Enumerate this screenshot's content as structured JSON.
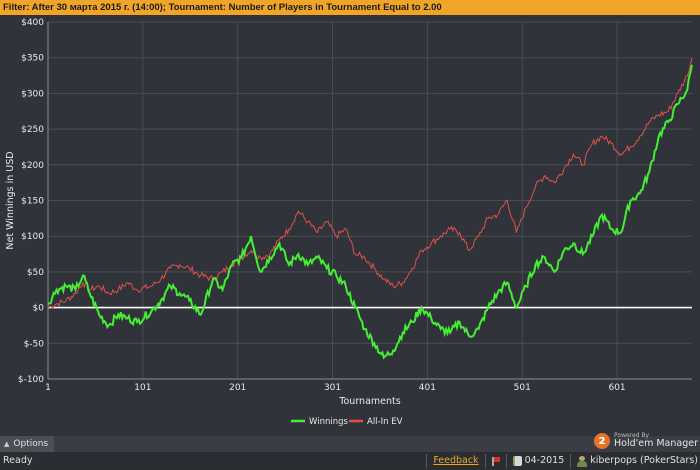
{
  "filter_text": "Filter: After 30 марта 2015 г. (14:00); Tournament: Number of Players in Tournament Equal to 2.00",
  "options_bar": {
    "label": "Options"
  },
  "logo": {
    "small_text": "Powered By",
    "main_text": "Hold'em Manager",
    "badge": "2"
  },
  "status": {
    "ready": "Ready",
    "feedback": "Feedback",
    "database": "04-2015",
    "player": "kiberpops (PokerStars)"
  },
  "colors": {
    "winnings": "#44ee33",
    "all_in_ev": "#e0504a",
    "zero_line": "#ffffff",
    "grid": "#4a4e54",
    "background": "#30343a"
  },
  "chart_data": {
    "type": "line",
    "xlabel": "Tournaments",
    "ylabel": "Net Winnings in USD",
    "xlim": [
      1,
      680
    ],
    "ylim": [
      -100,
      400
    ],
    "x_ticks": [
      1,
      101,
      201,
      301,
      401,
      501,
      601
    ],
    "y_ticks": [
      {
        "value": 400,
        "label": "$400"
      },
      {
        "value": 350,
        "label": "$350"
      },
      {
        "value": 300,
        "label": "$300"
      },
      {
        "value": 250,
        "label": "$250"
      },
      {
        "value": 200,
        "label": "$200"
      },
      {
        "value": 150,
        "label": "$150"
      },
      {
        "value": 100,
        "label": "$100"
      },
      {
        "value": 50,
        "label": "$50"
      },
      {
        "value": 0,
        "label": "$0"
      },
      {
        "value": -50,
        "label": "$-50"
      },
      {
        "value": -100,
        "label": "$-100"
      }
    ],
    "grid": true,
    "legend_position": "bottom-center",
    "series": [
      {
        "name": "Winnings",
        "x": [
          1,
          10,
          20,
          30,
          38,
          45,
          55,
          65,
          75,
          85,
          95,
          110,
          120,
          130,
          140,
          150,
          162,
          175,
          185,
          195,
          205,
          215,
          225,
          235,
          245,
          255,
          265,
          275,
          285,
          295,
          305,
          315,
          325,
          335,
          345,
          355,
          365,
          375,
          385,
          395,
          405,
          415,
          425,
          435,
          445,
          455,
          465,
          475,
          485,
          495,
          505,
          515,
          525,
          535,
          545,
          555,
          565,
          575,
          585,
          595,
          605,
          615,
          625,
          635,
          645,
          655,
          665,
          675,
          680
        ],
        "y": [
          5,
          25,
          30,
          25,
          45,
          20,
          -10,
          -25,
          -10,
          -15,
          -20,
          -5,
          10,
          30,
          20,
          10,
          -10,
          40,
          25,
          60,
          70,
          100,
          50,
          70,
          90,
          60,
          75,
          60,
          70,
          55,
          45,
          30,
          0,
          -30,
          -50,
          -70,
          -60,
          -35,
          -20,
          0,
          -15,
          -30,
          -35,
          -20,
          -40,
          -30,
          0,
          20,
          35,
          0,
          30,
          60,
          70,
          50,
          80,
          90,
          75,
          100,
          130,
          110,
          105,
          150,
          160,
          190,
          240,
          260,
          285,
          305,
          340
        ]
      },
      {
        "name": "All-In EV",
        "x": [
          1,
          10,
          20,
          30,
          38,
          45,
          55,
          65,
          75,
          85,
          95,
          110,
          120,
          130,
          140,
          150,
          162,
          175,
          185,
          195,
          205,
          215,
          225,
          235,
          245,
          255,
          265,
          275,
          285,
          295,
          305,
          315,
          325,
          335,
          345,
          355,
          365,
          375,
          385,
          395,
          405,
          415,
          425,
          435,
          445,
          455,
          465,
          475,
          485,
          495,
          505,
          515,
          525,
          535,
          545,
          555,
          565,
          575,
          585,
          595,
          605,
          615,
          625,
          635,
          645,
          655,
          665,
          675,
          680
        ],
        "y": [
          0,
          5,
          10,
          20,
          35,
          25,
          30,
          20,
          25,
          35,
          25,
          30,
          40,
          55,
          60,
          55,
          45,
          40,
          50,
          60,
          70,
          80,
          70,
          75,
          95,
          110,
          135,
          120,
          105,
          120,
          100,
          110,
          75,
          70,
          55,
          40,
          30,
          35,
          55,
          80,
          90,
          100,
          110,
          105,
          80,
          100,
          125,
          130,
          150,
          105,
          140,
          170,
          185,
          175,
          195,
          215,
          200,
          230,
          240,
          230,
          215,
          225,
          240,
          260,
          270,
          275,
          300,
          325,
          350
        ]
      }
    ]
  }
}
